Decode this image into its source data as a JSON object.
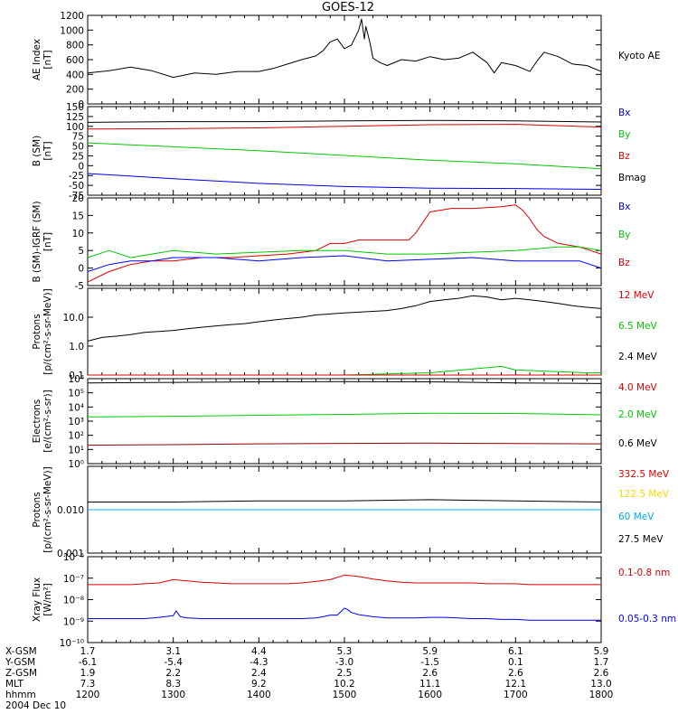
{
  "title": "GOES-12",
  "chart_data": [
    {
      "id": "ae",
      "type": "line",
      "ylabel": [
        "AE Index",
        "[nT]"
      ],
      "ylim": [
        0,
        1200
      ],
      "yticks": [
        "0",
        "200",
        "400",
        "600",
        "800",
        "1000",
        "1200"
      ],
      "legend": [
        {
          "name": "Kyoto AE",
          "color": "#000000"
        }
      ],
      "series": [
        {
          "name": "Kyoto AE",
          "color": "#000000",
          "x": [
            1200,
            1215,
            1230,
            1245,
            1300,
            1315,
            1330,
            1345,
            1400,
            1410,
            1420,
            1430,
            1440,
            1445,
            1450,
            1455,
            1500,
            1505,
            1510,
            1512,
            1514,
            1515,
            1516,
            1518,
            1520,
            1525,
            1530,
            1540,
            1550,
            1600,
            1610,
            1620,
            1630,
            1640,
            1645,
            1650,
            1700,
            1710,
            1715,
            1720,
            1730,
            1740,
            1750,
            1800
          ],
          "values": [
            420,
            450,
            500,
            450,
            360,
            420,
            400,
            440,
            440,
            480,
            540,
            600,
            650,
            720,
            840,
            880,
            750,
            800,
            1000,
            1150,
            880,
            1050,
            980,
            820,
            620,
            560,
            520,
            600,
            580,
            640,
            600,
            620,
            700,
            560,
            420,
            560,
            520,
            440,
            580,
            700,
            640,
            540,
            520,
            440
          ]
        }
      ]
    },
    {
      "id": "b",
      "type": "line",
      "ylabel": [
        "B (SM)",
        "[nT]"
      ],
      "ylim": [
        -75,
        150
      ],
      "yticks": [
        "-75",
        "-50",
        "-25",
        "0",
        "25",
        "50",
        "75",
        "100",
        "125",
        "150"
      ],
      "legend": [
        {
          "name": "Bx",
          "color": "#0000ff"
        },
        {
          "name": "By",
          "color": "#00c800"
        },
        {
          "name": "Bz",
          "color": "#dd0000"
        },
        {
          "name": "Bmag",
          "color": "#000000"
        }
      ],
      "series": [
        {
          "name": "Bmag",
          "color": "#000000",
          "x": [
            1200,
            1300,
            1400,
            1500,
            1600,
            1700,
            1800
          ],
          "values": [
            110,
            112,
            112,
            114,
            115,
            114,
            111
          ]
        },
        {
          "name": "Bz",
          "color": "#dd0000",
          "x": [
            1200,
            1300,
            1400,
            1500,
            1600,
            1700,
            1800
          ],
          "values": [
            93,
            94,
            96,
            100,
            104,
            105,
            98
          ]
        },
        {
          "name": "By",
          "color": "#00c800",
          "x": [
            1200,
            1300,
            1400,
            1500,
            1600,
            1700,
            1800
          ],
          "values": [
            58,
            48,
            38,
            26,
            14,
            5,
            -8
          ]
        },
        {
          "name": "Bx",
          "color": "#0000ff",
          "x": [
            1200,
            1300,
            1400,
            1500,
            1600,
            1700,
            1800
          ],
          "values": [
            -20,
            -33,
            -45,
            -53,
            -57,
            -58,
            -60
          ]
        }
      ]
    },
    {
      "id": "bdiff",
      "type": "line",
      "ylabel": [
        "B (SM)-IGRF (SM)",
        "[nT]"
      ],
      "ylim": [
        -5,
        20
      ],
      "yticks": [
        "-5",
        "0",
        "5",
        "10",
        "15",
        "20"
      ],
      "legend": [
        {
          "name": "Bx",
          "color": "#0000ff"
        },
        {
          "name": "By",
          "color": "#00c800"
        },
        {
          "name": "Bz",
          "color": "#dd0000"
        }
      ],
      "series": [
        {
          "name": "Bz",
          "color": "#dd0000",
          "x": [
            1200,
            1215,
            1230,
            1245,
            1300,
            1320,
            1340,
            1400,
            1420,
            1440,
            1450,
            1500,
            1510,
            1530,
            1545,
            1550,
            1555,
            1600,
            1615,
            1630,
            1650,
            1700,
            1705,
            1710,
            1715,
            1720,
            1730,
            1745,
            1800
          ],
          "values": [
            -4,
            -1,
            1,
            2,
            2,
            3,
            3,
            3.5,
            4,
            5,
            7,
            7,
            8,
            8,
            8,
            10,
            13,
            16,
            17,
            17,
            17.5,
            18,
            16.5,
            14,
            11,
            9,
            7,
            6,
            4
          ]
        },
        {
          "name": "By",
          "color": "#00c800",
          "x": [
            1200,
            1215,
            1230,
            1300,
            1330,
            1400,
            1430,
            1500,
            1530,
            1600,
            1630,
            1700,
            1730,
            1745,
            1800
          ],
          "values": [
            3,
            5,
            3,
            5,
            4,
            4.5,
            5,
            5,
            4,
            4,
            4.5,
            5,
            6,
            6,
            5
          ]
        },
        {
          "name": "Bx",
          "color": "#0000ff",
          "x": [
            1200,
            1215,
            1230,
            1245,
            1300,
            1330,
            1400,
            1430,
            1500,
            1530,
            1600,
            1630,
            1700,
            1730,
            1745,
            1800
          ],
          "values": [
            -1,
            1,
            2,
            2,
            3,
            3,
            2,
            3,
            3.5,
            2,
            2.5,
            3,
            2,
            2,
            2,
            0
          ]
        }
      ]
    },
    {
      "id": "protons1",
      "type": "line",
      "log": true,
      "ylabel": [
        "Protons",
        "[p/(cm²-s-sr-MeV)]"
      ],
      "ylim": [
        0.1,
        100
      ],
      "yticks": [
        "0.1",
        "1.0",
        "10.0"
      ],
      "legend": [
        {
          "name": "12 MeV",
          "color": "#dd0000"
        },
        {
          "name": "6.5 MeV",
          "color": "#00c800"
        },
        {
          "name": "2.4 MeV",
          "color": "#000000"
        }
      ],
      "series": [
        {
          "name": "2.4 MeV",
          "color": "#000000",
          "x": [
            1200,
            1210,
            1220,
            1230,
            1240,
            1250,
            1300,
            1310,
            1320,
            1330,
            1340,
            1350,
            1400,
            1410,
            1420,
            1430,
            1440,
            1450,
            1500,
            1510,
            1520,
            1530,
            1540,
            1550,
            1600,
            1610,
            1620,
            1630,
            1640,
            1650,
            1700,
            1710,
            1720,
            1730,
            1740,
            1750,
            1800
          ],
          "values": [
            1.5,
            2,
            2.2,
            2.5,
            3,
            3.2,
            3.5,
            4,
            4.5,
            5,
            5.5,
            6,
            7,
            8,
            9,
            10,
            12,
            13,
            14,
            15,
            16,
            17,
            20,
            25,
            35,
            40,
            45,
            55,
            50,
            40,
            45,
            40,
            35,
            30,
            25,
            22,
            20
          ]
        },
        {
          "name": "6.5 MeV",
          "color": "#00c800",
          "x": [
            1200,
            1300,
            1400,
            1500,
            1600,
            1650,
            1700,
            1750,
            1800
          ],
          "values": [
            0.1,
            0.1,
            0.1,
            0.1,
            0.12,
            0.2,
            0.15,
            0.12,
            0.12
          ]
        },
        {
          "name": "12 MeV",
          "color": "#dd0000",
          "x": [
            1200,
            1300,
            1400,
            1500,
            1600,
            1700,
            1800
          ],
          "values": [
            0.1,
            0.1,
            0.1,
            0.1,
            0.1,
            0.1,
            0.1
          ]
        }
      ]
    },
    {
      "id": "electrons",
      "type": "line",
      "log": true,
      "ylabel": [
        "Electrons",
        "[e/(cm²-s-sr)]"
      ],
      "ylim": [
        1,
        1000000
      ],
      "yticks": [
        "10⁰",
        "10¹",
        "10²",
        "10³",
        "10⁴",
        "10⁵",
        "10⁶"
      ],
      "legend": [
        {
          "name": "4.0 MeV",
          "color": "#dd0000"
        },
        {
          "name": "2.0 MeV",
          "color": "#00c800"
        },
        {
          "name": "0.6 MeV",
          "color": "#000000"
        }
      ],
      "series": [
        {
          "name": "0.6 MeV",
          "color": "#000000",
          "x": [
            1200,
            1300,
            1400,
            1500,
            1600,
            1700,
            1800
          ],
          "values": [
            500000,
            550000,
            600000,
            620000,
            600000,
            500000,
            450000
          ]
        },
        {
          "name": "2.0 MeV",
          "color": "#00c800",
          "x": [
            1200,
            1300,
            1400,
            1500,
            1600,
            1700,
            1800
          ],
          "values": [
            2000,
            2200,
            2600,
            3000,
            3600,
            3500,
            2800
          ]
        },
        {
          "name": "4.0 MeV",
          "color": "#8b0000",
          "x": [
            1200,
            1300,
            1400,
            1500,
            1600,
            1700,
            1800
          ],
          "values": [
            20,
            22,
            25,
            27,
            28,
            26,
            25
          ]
        }
      ]
    },
    {
      "id": "protons2",
      "type": "line",
      "log": true,
      "ylabel": [
        "Protons",
        "[p/(cm²-s-sr-MeV)]"
      ],
      "ylim": [
        0.001,
        0.1
      ],
      "yticks": [
        "0.001",
        "0.010"
      ],
      "legend": [
        {
          "name": "332.5 MeV",
          "color": "#dd0000"
        },
        {
          "name": "122.5 MeV",
          "color": "#ffd700"
        },
        {
          "name": "60 MeV",
          "color": "#00aaee"
        },
        {
          "name": "27.5 MeV",
          "color": "#000000"
        }
      ],
      "series": [
        {
          "name": "27.5 MeV",
          "color": "#000000",
          "x": [
            1200,
            1300,
            1400,
            1500,
            1600,
            1700,
            1800
          ],
          "values": [
            0.015,
            0.015,
            0.016,
            0.016,
            0.017,
            0.016,
            0.015
          ]
        },
        {
          "name": "60 MeV",
          "color": "#00aaee",
          "x": [
            1200,
            1300,
            1400,
            1500,
            1600,
            1700,
            1800
          ],
          "values": [
            0.01,
            0.01,
            0.01,
            0.01,
            0.01,
            0.01,
            0.01
          ]
        }
      ]
    },
    {
      "id": "xray",
      "type": "line",
      "log": true,
      "ylabel": [
        "Xray Flux",
        "[W/m²]"
      ],
      "ylim": [
        1e-10,
        1e-06
      ],
      "yticks": [
        "10⁻¹⁰",
        "10⁻⁹",
        "10⁻⁸",
        "10⁻⁷",
        "10⁻⁶"
      ],
      "legend": [
        {
          "name": "0.1-0.8 nm",
          "color": "#dd0000"
        },
        {
          "name": "0.05-0.3 nm",
          "color": "#0000ff"
        }
      ],
      "series": [
        {
          "name": "0.1-0.8 nm",
          "color": "#dd0000",
          "x": [
            1200,
            1210,
            1220,
            1230,
            1240,
            1250,
            1300,
            1310,
            1320,
            1330,
            1340,
            1350,
            1400,
            1410,
            1420,
            1430,
            1440,
            1450,
            1500,
            1510,
            1520,
            1530,
            1540,
            1550,
            1600,
            1610,
            1620,
            1630,
            1640,
            1650,
            1700,
            1710,
            1720,
            1730,
            1740,
            1750,
            1800
          ],
          "values": [
            5e-08,
            5e-08,
            5e-08,
            5e-08,
            5.5e-08,
            6e-08,
            8.5e-08,
            7.5e-08,
            6.5e-08,
            6e-08,
            5.5e-08,
            5.5e-08,
            5.5e-08,
            5.5e-08,
            5.5e-08,
            6e-08,
            7e-08,
            8.5e-08,
            1.4e-07,
            1.2e-07,
            9e-08,
            7.5e-08,
            6.5e-08,
            6e-08,
            6e-08,
            6e-08,
            6e-08,
            6e-08,
            5.5e-08,
            5.5e-08,
            5.5e-08,
            5e-08,
            5e-08,
            5e-08,
            5e-08,
            5e-08,
            5e-08
          ]
        },
        {
          "name": "0.05-0.3 nm",
          "color": "#0000ff",
          "x": [
            1200,
            1210,
            1220,
            1230,
            1240,
            1250,
            1300,
            1302,
            1305,
            1310,
            1320,
            1330,
            1340,
            1350,
            1400,
            1410,
            1420,
            1430,
            1440,
            1445,
            1450,
            1455,
            1500,
            1502,
            1505,
            1510,
            1520,
            1530,
            1540,
            1550,
            1600,
            1610,
            1620,
            1630,
            1640,
            1650,
            1700,
            1710,
            1720,
            1730,
            1740,
            1750,
            1800
          ],
          "values": [
            1.3e-09,
            1.3e-09,
            1.3e-09,
            1.3e-09,
            1.3e-09,
            1.5e-09,
            1.8e-09,
            3e-09,
            1.6e-09,
            1.4e-09,
            1.3e-09,
            1.3e-09,
            1.3e-09,
            1.3e-09,
            1.3e-09,
            1.3e-09,
            1.3e-09,
            1.3e-09,
            1.4e-09,
            1.6e-09,
            1.9e-09,
            1.9e-09,
            4e-09,
            3.5e-09,
            2.5e-09,
            2e-09,
            1.6e-09,
            1.4e-09,
            1.4e-09,
            1.4e-09,
            1.5e-09,
            1.5e-09,
            1.4e-09,
            1.3e-09,
            1.3e-09,
            1.2e-09,
            1.2e-09,
            1.1e-09,
            1.1e-09,
            1.1e-09,
            1.1e-09,
            1.1e-09,
            1.1e-09
          ]
        }
      ]
    }
  ],
  "x_axis": {
    "labels": [
      "X-GSM",
      "Y-GSM",
      "Z-GSM",
      "MLT",
      "hhmm"
    ],
    "date": "2004 Dec 10",
    "x": [
      1200,
      1300,
      1400,
      1500,
      1600,
      1700,
      1800
    ],
    "rows": [
      [
        "1.7",
        "3.1",
        "4.4",
        "5.3",
        "5.9",
        "6.1",
        "5.9"
      ],
      [
        "-6.1",
        "-5.4",
        "-4.3",
        "-3.0",
        "-1.5",
        "0.1",
        "1.7"
      ],
      [
        "1.9",
        "2.2",
        "2.4",
        "2.5",
        "2.6",
        "2.6",
        "2.6"
      ],
      [
        "7.3",
        "8.3",
        "9.2",
        "10.2",
        "11.1",
        "12.1",
        "13.0"
      ],
      [
        "1200",
        "1300",
        "1400",
        "1500",
        "1600",
        "1700",
        "1800"
      ]
    ]
  }
}
